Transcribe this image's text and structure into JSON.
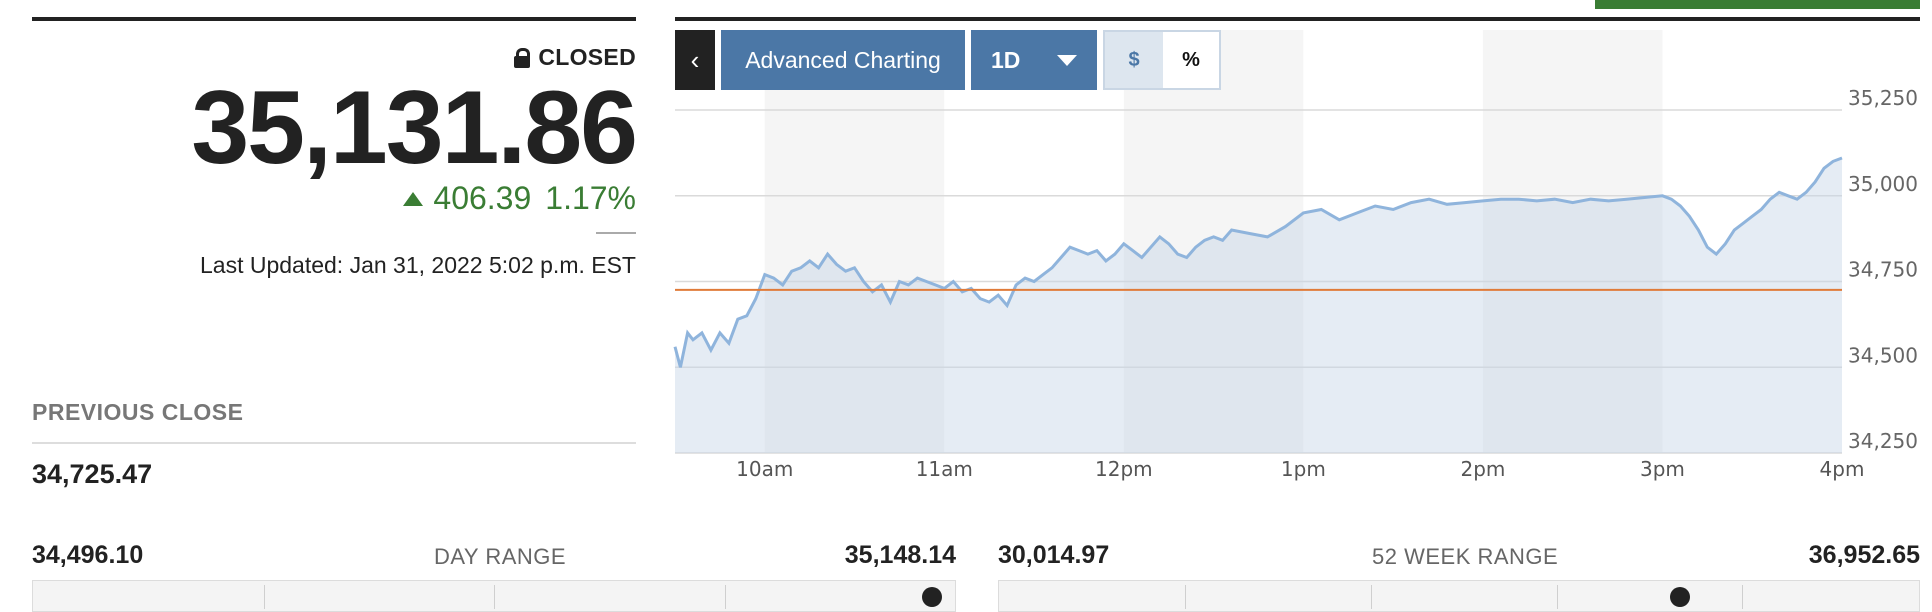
{
  "quote": {
    "status": "CLOSED",
    "price": "35,131.86",
    "change": "406.39",
    "change_pct": "1.17%",
    "last_updated": "Last Updated: Jan 31, 2022 5:02 p.m. EST",
    "previous_close_label": "PREVIOUS CLOSE",
    "previous_close": "34,725.47"
  },
  "day_range": {
    "label": "DAY RANGE",
    "low": "34,496.10",
    "high": "35,148.14",
    "position": 0.975
  },
  "week52_range": {
    "label": "52 WEEK RANGE",
    "low": "30,014.97",
    "high": "36,952.65",
    "position": 0.74
  },
  "toolbar": {
    "back_label": "‹",
    "advanced_label": "Advanced Charting",
    "range_label": "1D",
    "dollar_label": "$",
    "percent_label": "%"
  },
  "colors": {
    "accent": "#4b77a6",
    "up": "#3a7d34",
    "line": "#8fb4dc",
    "prev_close_line": "#e07b39"
  },
  "chart_data": {
    "type": "area",
    "ylim": [
      34250,
      35250
    ],
    "y_ticks": [
      {
        "value": 35250,
        "label": "35,250"
      },
      {
        "value": 35000,
        "label": "35,000"
      },
      {
        "value": 34750,
        "label": "34,750"
      },
      {
        "value": 34500,
        "label": "34,500"
      },
      {
        "value": 34250,
        "label": "34,250"
      }
    ],
    "x_ticks": [
      {
        "value": 10.0,
        "label": "10am"
      },
      {
        "value": 11.0,
        "label": "11am"
      },
      {
        "value": 12.0,
        "label": "12pm"
      },
      {
        "value": 13.0,
        "label": "1pm"
      },
      {
        "value": 14.0,
        "label": "2pm"
      },
      {
        "value": 15.0,
        "label": "3pm"
      },
      {
        "value": 16.0,
        "label": "4pm"
      }
    ],
    "xlim": [
      9.5,
      16.0
    ],
    "previous_close": 34725.47,
    "series": [
      {
        "x": [
          9.5,
          9.53,
          9.57,
          9.6,
          9.65,
          9.7,
          9.75,
          9.8,
          9.85,
          9.9,
          9.95,
          10.0,
          10.05,
          10.1,
          10.15,
          10.2,
          10.25,
          10.3,
          10.35,
          10.4,
          10.45,
          10.5,
          10.55,
          10.6,
          10.65,
          10.7,
          10.75,
          10.8,
          10.85,
          10.9,
          10.95,
          11.0,
          11.05,
          11.1,
          11.15,
          11.2,
          11.25,
          11.3,
          11.35,
          11.4,
          11.45,
          11.5,
          11.55,
          11.6,
          11.65,
          11.7,
          11.75,
          11.8,
          11.85,
          11.9,
          11.95,
          12.0,
          12.05,
          12.1,
          12.15,
          12.2,
          12.25,
          12.3,
          12.35,
          12.4,
          12.45,
          12.5,
          12.55,
          12.6,
          12.7,
          12.8,
          12.9,
          13.0,
          13.1,
          13.2,
          13.3,
          13.4,
          13.5,
          13.6,
          13.7,
          13.8,
          13.9,
          14.0,
          14.1,
          14.2,
          14.3,
          14.4,
          14.5,
          14.6,
          14.7,
          14.8,
          14.9,
          15.0,
          15.05,
          15.1,
          15.15,
          15.2,
          15.25,
          15.3,
          15.35,
          15.4,
          15.45,
          15.5,
          15.55,
          15.6,
          15.65,
          15.7,
          15.75,
          15.8,
          15.85,
          15.9,
          15.95,
          16.0
        ],
        "values": [
          34560,
          34500,
          34600,
          34580,
          34600,
          34550,
          34600,
          34570,
          34640,
          34650,
          34700,
          34770,
          34760,
          34740,
          34780,
          34790,
          34810,
          34790,
          34830,
          34800,
          34780,
          34790,
          34750,
          34720,
          34740,
          34690,
          34750,
          34740,
          34760,
          34750,
          34740,
          34730,
          34750,
          34720,
          34730,
          34700,
          34690,
          34710,
          34680,
          34740,
          34760,
          34750,
          34770,
          34790,
          34820,
          34850,
          34840,
          34830,
          34840,
          34810,
          34830,
          34860,
          34840,
          34820,
          34850,
          34880,
          34860,
          34830,
          34820,
          34850,
          34870,
          34880,
          34870,
          34900,
          34890,
          34880,
          34910,
          34950,
          34960,
          34930,
          34950,
          34970,
          34960,
          34980,
          34990,
          34975,
          34980,
          34985,
          34990,
          34990,
          34985,
          34990,
          34980,
          34990,
          34985,
          34990,
          34995,
          35000,
          34990,
          34970,
          34940,
          34900,
          34850,
          34830,
          34860,
          34900,
          34920,
          34940,
          34960,
          34990,
          35010,
          35000,
          34990,
          35010,
          35040,
          35080,
          35100,
          35110
        ]
      }
    ]
  }
}
